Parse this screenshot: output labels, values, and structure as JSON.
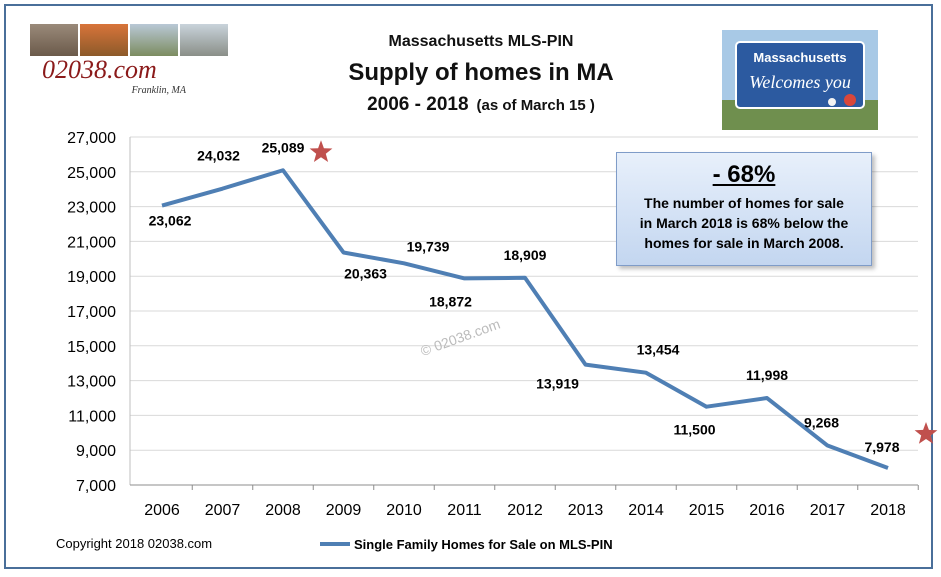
{
  "header": {
    "title_line1": "Massachusetts MLS-PIN",
    "title_line2": "Supply of homes in MA",
    "title_line3_years": "2006 - 2018",
    "title_line3_note": "(as of March 15 )"
  },
  "logo": {
    "site": "02038.com",
    "town": "Franklin, MA"
  },
  "sign": {
    "line1": "Massachusetts",
    "line2": "Welcomes you"
  },
  "callout": {
    "headline": "- 68%",
    "text_line1": "The number of homes for sale",
    "text_line2": "in March 2018 is 68% below the",
    "text_line3": "homes for sale in March 2008."
  },
  "watermark": "© 02038.com",
  "copyright": "Copyright 2018 02038.com",
  "colors": {
    "line": "#4f7fb4",
    "star": "#c0504d",
    "grid": "#d9d9d9"
  },
  "chart_data": {
    "type": "line",
    "title": "Supply of homes in MA",
    "categories": [
      "2006",
      "2007",
      "2008",
      "2009",
      "2010",
      "2011",
      "2012",
      "2013",
      "2014",
      "2015",
      "2016",
      "2017",
      "2018"
    ],
    "series": [
      {
        "name": "Single Family Homes for Sale on MLS-PIN",
        "values": [
          23062,
          24032,
          25089,
          20363,
          19739,
          18872,
          18909,
          13919,
          13454,
          11500,
          11998,
          9268,
          7978
        ],
        "value_labels": [
          "23,062",
          "24,032",
          "25,089",
          "20,363",
          "19,739",
          "18,872",
          "18,909",
          "13,919",
          "13,454",
          "11,500",
          "11,998",
          "9,268",
          "7,978"
        ]
      }
    ],
    "y_ticks": [
      "7,000",
      "9,000",
      "11,000",
      "13,000",
      "15,000",
      "17,000",
      "19,000",
      "21,000",
      "23,000",
      "25,000",
      "27,000"
    ],
    "ylim": [
      7000,
      27000
    ],
    "grid": true,
    "legend_position": "bottom",
    "star_markers": [
      "2008",
      "2018"
    ]
  }
}
